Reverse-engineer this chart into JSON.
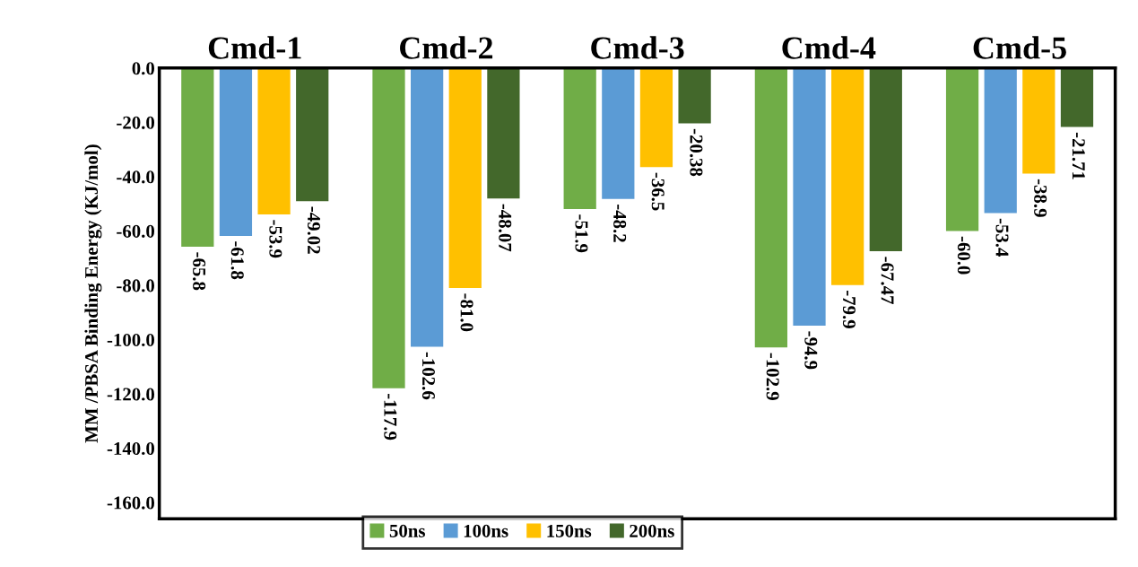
{
  "chart_data": {
    "type": "bar",
    "ylabel": "MM /PBSA Binding Energy (KJ/mol)",
    "categories": [
      "Cmd-1",
      "Cmd-2",
      "Cmd-3",
      "Cmd-4",
      "Cmd-5"
    ],
    "series": [
      {
        "name": "50ns",
        "color": "#70ad47",
        "values": [
          -65.8,
          -117.9,
          -51.9,
          -102.9,
          -60.0
        ],
        "value_labels": [
          "-65.8",
          "-117.9",
          "-51.9",
          "-102.9",
          "-60.0"
        ]
      },
      {
        "name": "100ns",
        "color": "#5b9bd5",
        "values": [
          -61.8,
          -102.6,
          -48.2,
          -94.9,
          -53.4
        ],
        "value_labels": [
          "-61.8",
          "-102.6",
          "-48.2",
          "-94.9",
          "-53.4"
        ]
      },
      {
        "name": "150ns",
        "color": "#ffc000",
        "values": [
          -53.9,
          -81.0,
          -36.5,
          -79.9,
          -38.9
        ],
        "value_labels": [
          "-53.9",
          "-81.0",
          "-36.5",
          "-79.9",
          "-38.9"
        ]
      },
      {
        "name": "200ns",
        "color": "#43682b",
        "values": [
          -49.02,
          -48.07,
          -20.38,
          -67.47,
          -21.71
        ],
        "value_labels": [
          "-49.02",
          "-48.07",
          "-20.38",
          "-67.47",
          "-21.71"
        ]
      }
    ],
    "ylim": [
      -166,
      0
    ],
    "yticks": [
      {
        "value": 0,
        "label": "0.0"
      },
      {
        "value": -20,
        "label": "-20.0"
      },
      {
        "value": -40,
        "label": "-40.0"
      },
      {
        "value": -60,
        "label": "-60.0"
      },
      {
        "value": -80,
        "label": "-80.0"
      },
      {
        "value": -100,
        "label": "-100.0"
      },
      {
        "value": -120,
        "label": "-120.0"
      },
      {
        "value": -140,
        "label": "-140.0"
      },
      {
        "value": -160,
        "label": "-160.0"
      }
    ],
    "grid": false,
    "legend": "bottom"
  }
}
